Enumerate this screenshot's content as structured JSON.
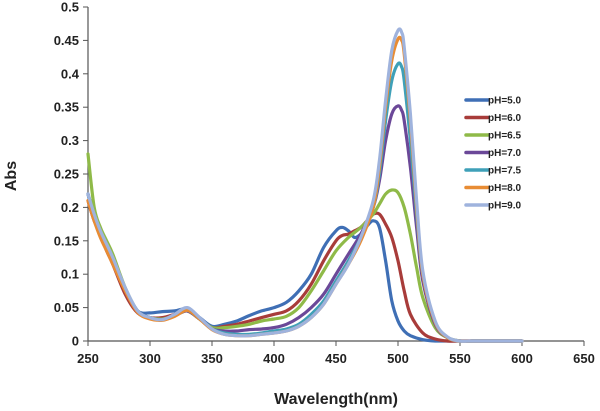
{
  "chart_data": {
    "type": "line",
    "title": "",
    "xlabel": "Wavelength(nm)",
    "ylabel": "Abs",
    "xlim": [
      250,
      650
    ],
    "ylim": [
      0,
      0.5
    ],
    "xticks": [
      "250",
      "300",
      "350",
      "400",
      "450",
      "500",
      "550",
      "600",
      "650"
    ],
    "yticks": [
      "0",
      "0.05",
      "0.1",
      "0.15",
      "0.2",
      "0.25",
      "0.3",
      "0.35",
      "0.4",
      "0.45",
      "0.5"
    ],
    "grid": false,
    "legend_position": "right",
    "series": [
      {
        "name": "pH=5.0",
        "color": "#3f6fb5",
        "x": [
          250,
          255,
          260,
          265,
          270,
          280,
          290,
          300,
          310,
          320,
          330,
          340,
          350,
          360,
          370,
          380,
          390,
          400,
          410,
          420,
          430,
          440,
          450,
          455,
          460,
          465,
          470,
          475,
          480,
          485,
          490,
          495,
          500,
          505,
          510,
          520,
          530,
          540,
          550,
          560,
          580,
          600
        ],
        "y": [
          0.22,
          0.19,
          0.165,
          0.14,
          0.12,
          0.075,
          0.045,
          0.042,
          0.044,
          0.045,
          0.048,
          0.035,
          0.022,
          0.025,
          0.03,
          0.038,
          0.045,
          0.05,
          0.058,
          0.075,
          0.1,
          0.14,
          0.165,
          0.17,
          0.165,
          0.155,
          0.16,
          0.172,
          0.18,
          0.17,
          0.12,
          0.06,
          0.03,
          0.015,
          0.008,
          0.002,
          0,
          0,
          0,
          0,
          0,
          0
        ]
      },
      {
        "name": "pH=6.0",
        "color": "#a83c3a",
        "x": [
          250,
          255,
          260,
          265,
          270,
          280,
          290,
          300,
          310,
          320,
          330,
          340,
          350,
          360,
          370,
          380,
          390,
          400,
          410,
          420,
          430,
          440,
          450,
          455,
          460,
          465,
          470,
          475,
          480,
          485,
          490,
          495,
          500,
          505,
          510,
          520,
          530,
          540,
          550,
          560,
          580,
          600
        ],
        "y": [
          0.21,
          0.18,
          0.16,
          0.135,
          0.115,
          0.07,
          0.042,
          0.035,
          0.035,
          0.04,
          0.045,
          0.033,
          0.02,
          0.022,
          0.025,
          0.03,
          0.035,
          0.04,
          0.045,
          0.06,
          0.085,
          0.12,
          0.15,
          0.158,
          0.16,
          0.165,
          0.17,
          0.18,
          0.19,
          0.19,
          0.175,
          0.155,
          0.12,
          0.075,
          0.04,
          0.012,
          0.003,
          0,
          0,
          0,
          0,
          0
        ]
      },
      {
        "name": "pH=6.5",
        "color": "#8fba48",
        "x": [
          250,
          255,
          260,
          265,
          270,
          280,
          290,
          300,
          310,
          320,
          330,
          340,
          350,
          360,
          370,
          380,
          390,
          400,
          410,
          420,
          430,
          440,
          450,
          460,
          470,
          480,
          485,
          490,
          495,
          500,
          505,
          510,
          515,
          520,
          530,
          540,
          550,
          560,
          580,
          600
        ],
        "y": [
          0.28,
          0.2,
          0.17,
          0.15,
          0.13,
          0.08,
          0.045,
          0.035,
          0.033,
          0.038,
          0.045,
          0.033,
          0.02,
          0.02,
          0.022,
          0.025,
          0.03,
          0.033,
          0.037,
          0.05,
          0.075,
          0.105,
          0.135,
          0.155,
          0.17,
          0.19,
          0.205,
          0.22,
          0.226,
          0.222,
          0.2,
          0.16,
          0.11,
          0.065,
          0.02,
          0.005,
          0,
          0,
          0,
          0
        ]
      },
      {
        "name": "pH=7.0",
        "color": "#6b4898",
        "x": [
          250,
          255,
          260,
          265,
          270,
          280,
          290,
          300,
          310,
          320,
          330,
          340,
          350,
          360,
          370,
          380,
          390,
          400,
          410,
          420,
          430,
          440,
          450,
          460,
          470,
          480,
          485,
          490,
          495,
          500,
          503,
          505,
          510,
          515,
          520,
          530,
          540,
          550,
          560,
          580,
          600
        ],
        "y": [
          0.22,
          0.185,
          0.16,
          0.14,
          0.12,
          0.077,
          0.045,
          0.035,
          0.032,
          0.038,
          0.045,
          0.033,
          0.018,
          0.015,
          0.015,
          0.017,
          0.018,
          0.02,
          0.025,
          0.035,
          0.05,
          0.07,
          0.1,
          0.13,
          0.16,
          0.2,
          0.24,
          0.3,
          0.34,
          0.352,
          0.345,
          0.33,
          0.26,
          0.17,
          0.09,
          0.025,
          0.005,
          0,
          0,
          0,
          0
        ]
      },
      {
        "name": "pH=7.5",
        "color": "#3fa0b8",
        "x": [
          250,
          255,
          260,
          265,
          270,
          280,
          290,
          300,
          310,
          320,
          330,
          340,
          350,
          360,
          370,
          380,
          390,
          400,
          410,
          420,
          430,
          440,
          450,
          460,
          470,
          480,
          485,
          490,
          495,
          500,
          503,
          505,
          510,
          515,
          520,
          530,
          540,
          550,
          560,
          580,
          600
        ],
        "y": [
          0.22,
          0.185,
          0.16,
          0.14,
          0.12,
          0.078,
          0.045,
          0.035,
          0.032,
          0.038,
          0.046,
          0.033,
          0.018,
          0.012,
          0.01,
          0.01,
          0.012,
          0.015,
          0.018,
          0.025,
          0.04,
          0.06,
          0.09,
          0.12,
          0.155,
          0.2,
          0.25,
          0.33,
          0.39,
          0.415,
          0.41,
          0.39,
          0.3,
          0.19,
          0.1,
          0.028,
          0.005,
          0,
          0,
          0,
          0
        ]
      },
      {
        "name": "pH=8.0",
        "color": "#e88c34",
        "x": [
          250,
          255,
          260,
          265,
          270,
          280,
          290,
          300,
          310,
          320,
          330,
          340,
          350,
          360,
          370,
          380,
          390,
          400,
          410,
          420,
          430,
          440,
          450,
          460,
          470,
          480,
          485,
          490,
          495,
          500,
          503,
          505,
          510,
          515,
          520,
          530,
          540,
          550,
          560,
          580,
          600
        ],
        "y": [
          0.21,
          0.18,
          0.155,
          0.135,
          0.115,
          0.075,
          0.043,
          0.033,
          0.031,
          0.037,
          0.046,
          0.033,
          0.017,
          0.01,
          0.008,
          0.008,
          0.01,
          0.012,
          0.015,
          0.022,
          0.035,
          0.055,
          0.085,
          0.115,
          0.15,
          0.2,
          0.26,
          0.35,
          0.42,
          0.452,
          0.45,
          0.43,
          0.33,
          0.2,
          0.1,
          0.028,
          0.005,
          0,
          0,
          0,
          0
        ]
      },
      {
        "name": "pH=9.0",
        "color": "#9fb3dd",
        "x": [
          250,
          255,
          260,
          265,
          270,
          280,
          290,
          300,
          310,
          320,
          330,
          340,
          350,
          360,
          370,
          380,
          390,
          400,
          410,
          420,
          430,
          440,
          450,
          460,
          470,
          480,
          485,
          490,
          495,
          500,
          503,
          505,
          510,
          515,
          520,
          530,
          540,
          550,
          560,
          580,
          600
        ],
        "y": [
          0.22,
          0.19,
          0.165,
          0.145,
          0.125,
          0.08,
          0.045,
          0.035,
          0.032,
          0.04,
          0.05,
          0.035,
          0.018,
          0.01,
          0.008,
          0.008,
          0.01,
          0.012,
          0.015,
          0.022,
          0.035,
          0.055,
          0.085,
          0.115,
          0.155,
          0.21,
          0.27,
          0.36,
          0.435,
          0.465,
          0.462,
          0.44,
          0.34,
          0.21,
          0.105,
          0.03,
          0.006,
          0,
          0,
          0,
          0
        ]
      }
    ]
  }
}
